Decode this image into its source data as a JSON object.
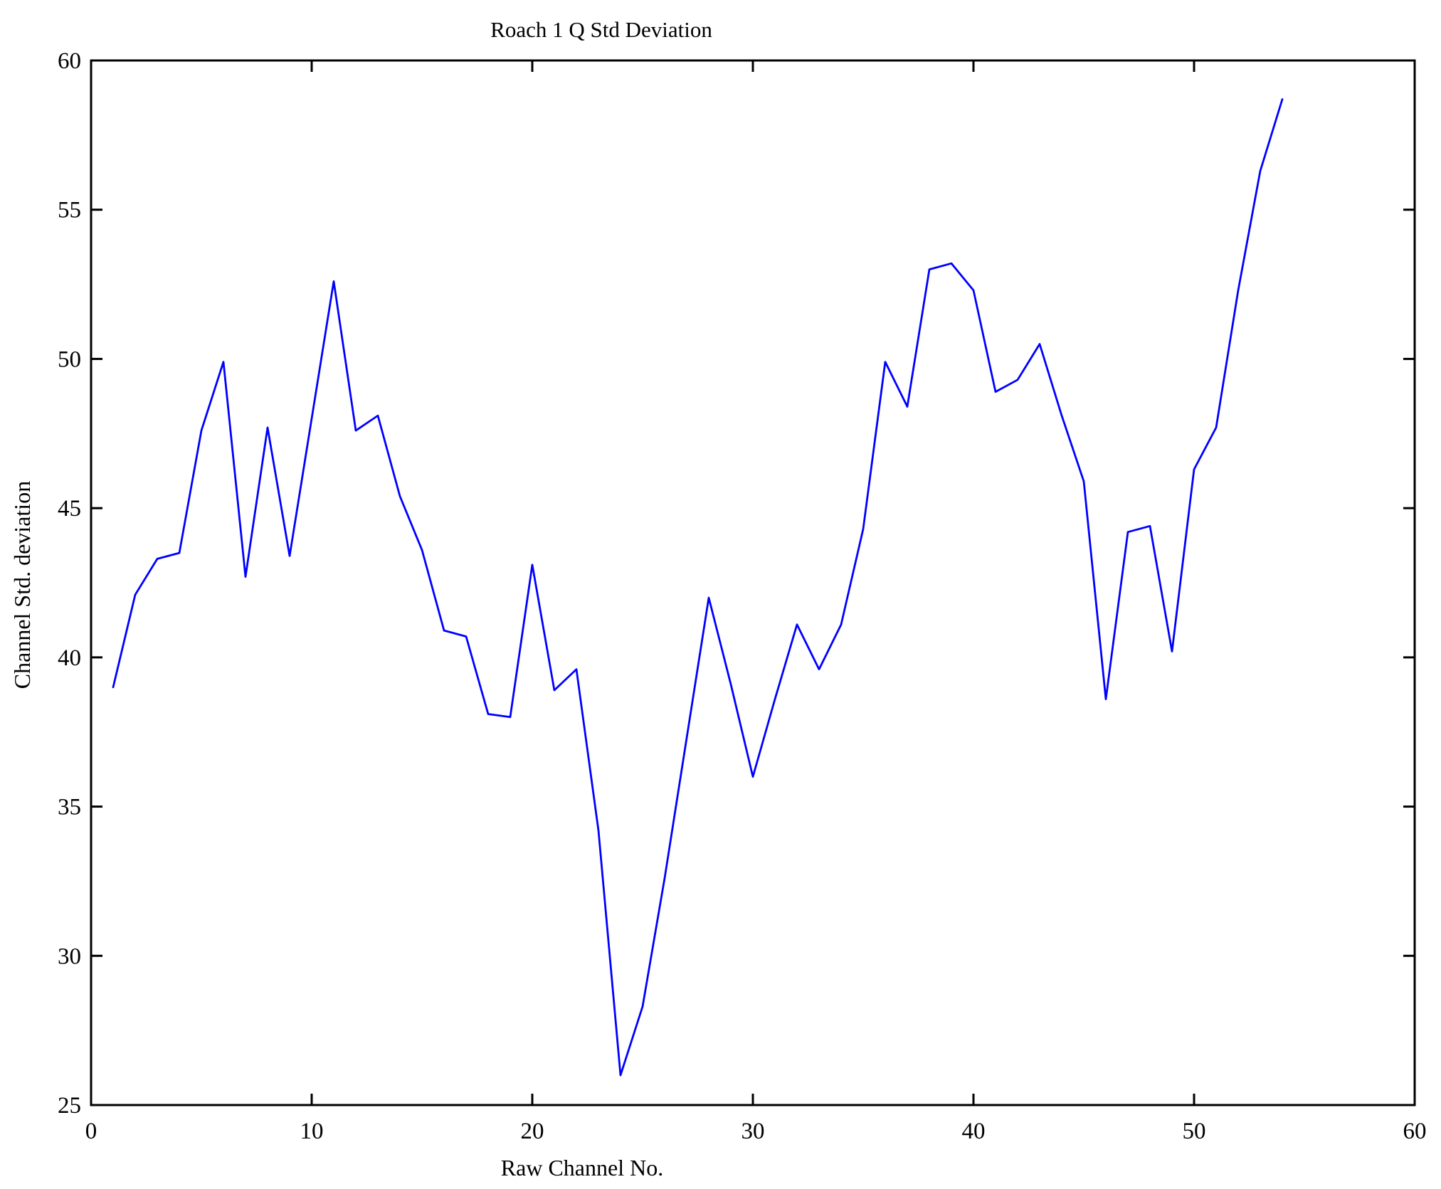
{
  "figure": {
    "background": "#ffffff"
  },
  "chart_data": {
    "type": "line",
    "title": "Roach 1 Q Std Deviation",
    "xlabel": "Raw Channel No.",
    "ylabel": "Channel Std. deviation",
    "xlim": [
      0,
      60
    ],
    "ylim": [
      25,
      60
    ],
    "xticks": [
      0,
      10,
      20,
      30,
      40,
      50,
      60
    ],
    "yticks": [
      25,
      30,
      35,
      40,
      45,
      50,
      55,
      60
    ],
    "grid": false,
    "legend": null,
    "line_color": "#0000ff",
    "axis_color": "#000000",
    "x": [
      1,
      2,
      3,
      4,
      5,
      6,
      7,
      8,
      9,
      10,
      11,
      12,
      13,
      14,
      15,
      16,
      17,
      18,
      19,
      20,
      21,
      22,
      23,
      24,
      25,
      26,
      27,
      28,
      29,
      30,
      31,
      32,
      33,
      34,
      35,
      36,
      37,
      38,
      39,
      40,
      41,
      42,
      43,
      44,
      45,
      46,
      47,
      48,
      49,
      50,
      51,
      52,
      53,
      54
    ],
    "values": [
      39.0,
      42.1,
      43.3,
      43.5,
      47.6,
      49.9,
      42.7,
      47.7,
      43.4,
      48.0,
      52.6,
      47.6,
      48.1,
      45.4,
      43.6,
      40.9,
      40.7,
      38.1,
      38.0,
      43.1,
      38.9,
      39.6,
      34.2,
      26.0,
      28.3,
      32.6,
      37.3,
      42.0,
      39.1,
      36.0,
      38.6,
      41.1,
      39.6,
      41.1,
      44.3,
      49.9,
      48.4,
      53.0,
      53.2,
      52.3,
      48.9,
      49.3,
      50.5,
      48.1,
      45.9,
      38.6,
      44.2,
      44.4,
      40.2,
      46.3,
      47.7,
      52.3,
      56.3,
      58.7
    ]
  }
}
